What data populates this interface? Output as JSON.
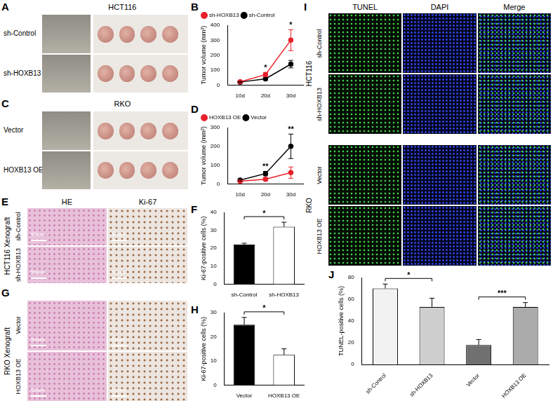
{
  "chart_data": [
    {
      "panel": "B",
      "type": "line",
      "categories": [
        "10d",
        "20d",
        "30d"
      ],
      "y_label": "Tumor volume (mm³)",
      "ylim": [
        0,
        400
      ],
      "yticks": [
        0,
        100,
        200,
        300,
        400
      ],
      "grid": false,
      "legend": "upper left",
      "series": [
        {
          "name": "sh-HOXB13",
          "color": "#e8202a",
          "marker": "circle",
          "values": [
            22,
            70,
            300
          ],
          "errors": [
            5,
            15,
            70
          ]
        },
        {
          "name": "sh-Control",
          "color": "#000000",
          "marker": "circle",
          "values": [
            20,
            42,
            140
          ],
          "errors": [
            4,
            8,
            25
          ]
        }
      ],
      "annotations": [
        {
          "text": "*",
          "at": "20d"
        },
        {
          "text": "*",
          "at": "30d"
        }
      ]
    },
    {
      "panel": "D",
      "type": "line",
      "categories": [
        "10d",
        "20d",
        "30d"
      ],
      "y_label": "Tumor volume (mm³)",
      "ylim": [
        0,
        300
      ],
      "yticks": [
        0,
        100,
        200,
        300
      ],
      "grid": false,
      "legend": "upper left",
      "series": [
        {
          "name": "HOXB13 OE",
          "color": "#e8202a",
          "marker": "circle",
          "values": [
            15,
            25,
            60
          ],
          "errors": [
            5,
            8,
            30
          ]
        },
        {
          "name": "Vector",
          "color": "#000000",
          "marker": "circle",
          "values": [
            20,
            55,
            200
          ],
          "errors": [
            5,
            12,
            65
          ]
        }
      ],
      "annotations": [
        {
          "text": "**",
          "at": "20d"
        },
        {
          "text": "**",
          "at": "30d"
        }
      ]
    },
    {
      "panel": "F",
      "type": "bar",
      "categories": [
        "sh-Control",
        "sh-HOXB13"
      ],
      "y_label": "Ki-67-positive cells (%)",
      "ylim": [
        0,
        40
      ],
      "yticks": [
        0,
        10,
        20,
        30,
        40
      ],
      "grid": false,
      "values": [
        22,
        32
      ],
      "errors": [
        0.8,
        2.5
      ],
      "colors": [
        "#000000",
        "#ffffff"
      ],
      "annotations": [
        {
          "text": "*",
          "between": [
            "sh-Control",
            "sh-HOXB13"
          ]
        }
      ]
    },
    {
      "panel": "H",
      "type": "bar",
      "categories": [
        "Vector",
        "HOXB13 OE"
      ],
      "y_label": "Ki-67-positive cells (%)",
      "ylim": [
        0,
        30
      ],
      "yticks": [
        0,
        10,
        20,
        30
      ],
      "grid": false,
      "values": [
        25,
        12.5
      ],
      "errors": [
        3,
        2.5
      ],
      "colors": [
        "#000000",
        "#ffffff"
      ],
      "annotations": [
        {
          "text": "*",
          "between": [
            "Vector",
            "HOXB13 OE"
          ]
        }
      ]
    },
    {
      "panel": "J",
      "type": "bar",
      "categories": [
        "sh-Control",
        "sh-HOXB13",
        "Vector",
        "HOXB13 OE"
      ],
      "y_label": "TUNEL-positive cells (%)",
      "ylim": [
        0,
        80
      ],
      "yticks": [
        0,
        20,
        40,
        60,
        80
      ],
      "grid": false,
      "values": [
        70,
        53,
        18,
        53
      ],
      "errors": [
        4,
        8,
        5,
        4
      ],
      "colors": [
        "#f2f2f2",
        "#cfcfcf",
        "#707070",
        "#ababab"
      ],
      "annotations": [
        {
          "text": "*",
          "between": [
            "sh-Control",
            "sh-HOXB13"
          ]
        },
        {
          "text": "***",
          "between": [
            "Vector",
            "HOXB13 OE"
          ]
        }
      ]
    }
  ],
  "figure": {
    "panels": [
      {
        "panel": "A",
        "title": "HCT116",
        "rows": [
          "sh-Control",
          "sh-HOXB13"
        ]
      },
      {
        "panel": "C",
        "title": "RKO",
        "rows": [
          "Vector",
          "HOXB13 OE"
        ]
      },
      {
        "panel": "E",
        "group": "HCT116 Xenograft",
        "columns": [
          "HE",
          "Ki-67"
        ],
        "rows": [
          "sh-Control",
          "sh-HOXB13"
        ],
        "scale_bar": "50um"
      },
      {
        "panel": "G",
        "group": "RKO Xenograft",
        "rows": [
          "Vector",
          "HOXB13 OE"
        ],
        "scale_bar": "50um"
      },
      {
        "panel": "I",
        "columns": [
          "TUNEL",
          "DAPI",
          "Merge"
        ],
        "groups": [
          {
            "name": "HCT116",
            "rows": [
              "sh-Control",
              "sh-HOXB13"
            ]
          },
          {
            "name": "RKO",
            "rows": [
              "Vector",
              "HOXB13 OE"
            ]
          }
        ]
      }
    ]
  }
}
